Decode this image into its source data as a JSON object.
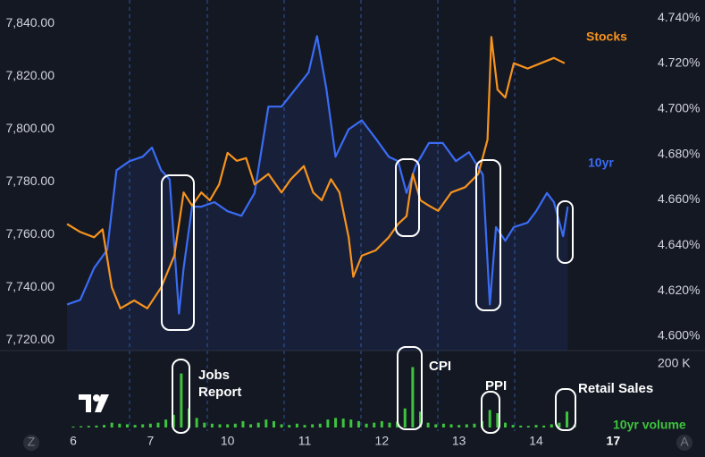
{
  "chart_data": [
    {
      "type": "line",
      "xlim": [
        -0.95,
        7.39
      ],
      "xticks": [
        {
          "value": 0,
          "label": "6"
        },
        {
          "value": 1,
          "label": "7"
        },
        {
          "value": 2,
          "label": "10"
        },
        {
          "value": 3,
          "label": "11"
        },
        {
          "value": 4,
          "label": "12"
        },
        {
          "value": 5,
          "label": "13"
        },
        {
          "value": 6,
          "label": "14"
        },
        {
          "value": 7,
          "label": "17"
        }
      ],
      "ylim": [
        7716,
        7849
      ],
      "yticks": [
        {
          "value": 7720,
          "label": "7,720.00"
        },
        {
          "value": 7740,
          "label": "7,740.00"
        },
        {
          "value": 7760,
          "label": "7,760.00"
        },
        {
          "value": 7780,
          "label": "7,780.00"
        },
        {
          "value": 7800,
          "label": "7,800.00"
        },
        {
          "value": 7820,
          "label": "7,820.00"
        },
        {
          "value": 7840,
          "label": "7,840.00"
        }
      ],
      "y2lim": [
        4.5937,
        4.7479
      ],
      "y2ticks": [
        {
          "value": 4.6,
          "label": "4.600%"
        },
        {
          "value": 4.62,
          "label": "4.620%"
        },
        {
          "value": 4.64,
          "label": "4.640%"
        },
        {
          "value": 4.66,
          "label": "4.660%"
        },
        {
          "value": 4.68,
          "label": "4.680%"
        },
        {
          "value": 4.7,
          "label": "4.700%"
        },
        {
          "value": 4.72,
          "label": "4.720%"
        },
        {
          "value": 4.74,
          "label": "4.740%"
        }
      ],
      "series": [
        {
          "name": "Stocks",
          "color": "#f7931e",
          "axis": "y",
          "x": [
            -0.08,
            0.09,
            0.27,
            0.38,
            0.5,
            0.61,
            0.79,
            0.96,
            1.14,
            1.31,
            1.43,
            1.54,
            1.66,
            1.77,
            1.89,
            2.0,
            2.12,
            2.24,
            2.35,
            2.53,
            2.7,
            2.82,
            2.99,
            3.11,
            3.22,
            3.34,
            3.45,
            3.57,
            3.63,
            3.74,
            3.92,
            4.09,
            4.21,
            4.32,
            4.4,
            4.5,
            4.61,
            4.73,
            4.9,
            5.08,
            5.25,
            5.37,
            5.42,
            5.5,
            5.6,
            5.71,
            5.89,
            6.06,
            6.23,
            6.37
          ],
          "values": [
            7764,
            7761,
            7759,
            7762,
            7740,
            7732,
            7735,
            7732,
            7740,
            7752,
            7776,
            7771,
            7776,
            7773,
            7779,
            7791,
            7788,
            7789,
            7779,
            7783,
            7776,
            7781,
            7786,
            7776,
            7773,
            7781,
            7776,
            7759,
            7744,
            7752,
            7754,
            7759,
            7764,
            7767,
            7783,
            7773,
            7771,
            7769,
            7776,
            7778,
            7783,
            7796,
            7835,
            7815,
            7812,
            7825,
            7823,
            7825,
            7827,
            7825
          ]
        },
        {
          "name": "10yr",
          "color": "#3a6cf4",
          "axis": "y2",
          "x": [
            -0.08,
            0.09,
            0.27,
            0.44,
            0.56,
            0.73,
            0.9,
            1.02,
            1.14,
            1.25,
            1.37,
            1.43,
            1.54,
            1.66,
            1.83,
            2.0,
            2.18,
            2.35,
            2.53,
            2.7,
            3.05,
            3.16,
            3.28,
            3.4,
            3.57,
            3.74,
            3.92,
            4.09,
            4.21,
            4.32,
            4.44,
            4.61,
            4.79,
            4.96,
            5.13,
            5.31,
            5.4,
            5.48,
            5.6,
            5.71,
            5.89,
            6.0,
            6.14,
            6.23,
            6.35,
            6.41
          ],
          "values": [
            4.614,
            4.616,
            4.63,
            4.638,
            4.673,
            4.677,
            4.679,
            4.683,
            4.673,
            4.669,
            4.61,
            4.63,
            4.657,
            4.657,
            4.659,
            4.655,
            4.653,
            4.663,
            4.701,
            4.701,
            4.716,
            4.732,
            4.709,
            4.679,
            4.691,
            4.695,
            4.687,
            4.679,
            4.677,
            4.663,
            4.675,
            4.685,
            4.685,
            4.677,
            4.681,
            4.671,
            4.614,
            4.648,
            4.642,
            4.648,
            4.65,
            4.655,
            4.663,
            4.659,
            4.644,
            4.657
          ]
        }
      ],
      "annotations": [
        "Jobs Report",
        "CPI",
        "PPI",
        "Retail Sales"
      ]
    },
    {
      "type": "bar",
      "xlim": [
        -0.95,
        7.39
      ],
      "ylim": [
        0,
        242
      ],
      "yticks": [
        {
          "value": 200,
          "label": "200 K"
        }
      ],
      "series": [
        {
          "name": "10yr volume",
          "color": "#3dc43d",
          "x": [
            0,
            0.1,
            0.2,
            0.3,
            0.4,
            0.5,
            0.6,
            0.7,
            0.8,
            0.9,
            1.0,
            1.1,
            1.2,
            1.3,
            1.4,
            1.5,
            1.6,
            1.7,
            1.8,
            1.9,
            2.0,
            2.1,
            2.2,
            2.3,
            2.4,
            2.5,
            2.6,
            2.7,
            2.8,
            2.9,
            3.0,
            3.1,
            3.2,
            3.3,
            3.4,
            3.5,
            3.6,
            3.7,
            3.8,
            3.9,
            4.0,
            4.1,
            4.2,
            4.3,
            4.4,
            4.5,
            4.6,
            4.7,
            4.8,
            4.9,
            5.0,
            5.1,
            5.2,
            5.3,
            5.4,
            5.5,
            5.6,
            5.7,
            5.8,
            5.9,
            6.0,
            6.1,
            6.2,
            6.3,
            6.4,
            6.5
          ],
          "values": [
            3,
            4,
            5,
            6,
            8,
            15,
            12,
            10,
            8,
            10,
            12,
            15,
            25,
            40,
            170,
            60,
            30,
            15,
            12,
            10,
            10,
            12,
            20,
            10,
            15,
            25,
            20,
            10,
            8,
            12,
            8,
            10,
            12,
            25,
            30,
            28,
            25,
            20,
            12,
            15,
            20,
            15,
            18,
            60,
            190,
            50,
            15,
            10,
            12,
            10,
            8,
            10,
            12,
            20,
            55,
            45,
            15,
            8,
            6,
            5,
            8,
            6,
            10,
            15,
            50,
            8
          ]
        }
      ]
    }
  ],
  "controls": {
    "left": "Z",
    "right": "A"
  }
}
